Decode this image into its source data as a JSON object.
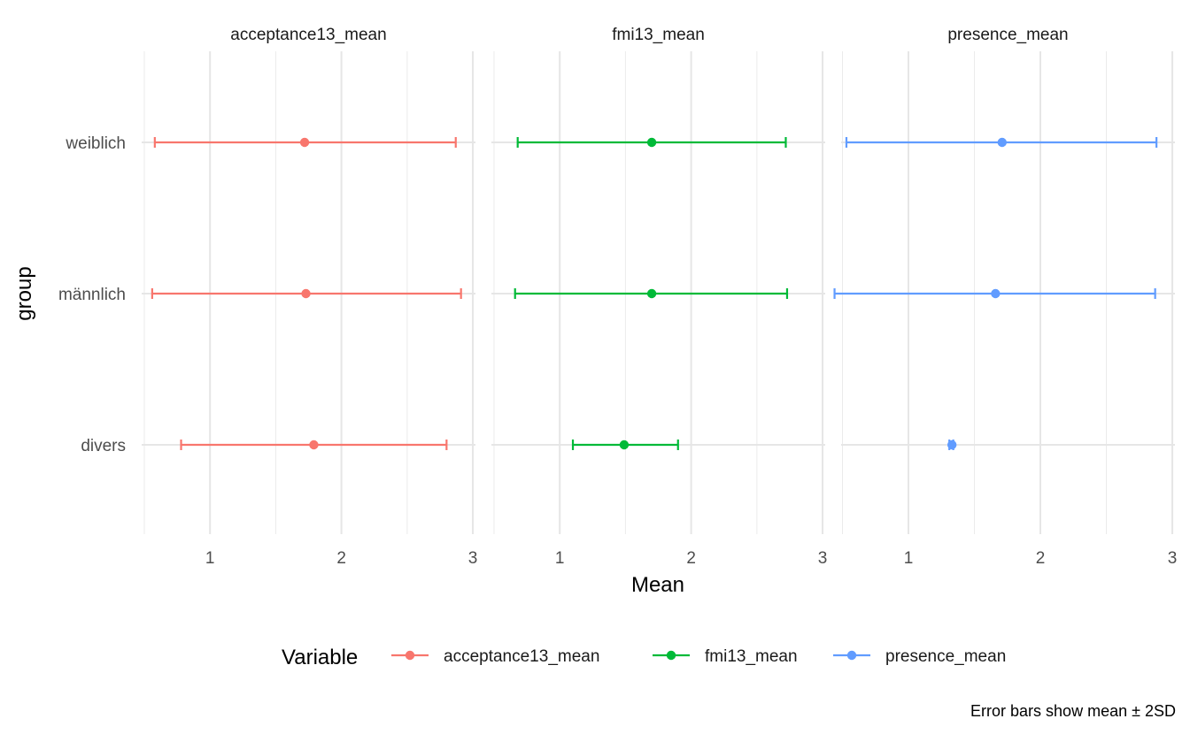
{
  "chart_data": {
    "type": "errorbar-facets",
    "ylabel": "group",
    "xlabel": "Mean",
    "groups": [
      "weiblich",
      "männlich",
      "divers"
    ],
    "x_ticks": [
      1,
      2,
      3
    ],
    "xlim": [
      0.5,
      3.0
    ],
    "grid": true,
    "legend": {
      "title": "Variable",
      "placement": "bottom",
      "entries": [
        {
          "label": "acceptance13_mean",
          "color": "#F8766D"
        },
        {
          "label": "fmi13_mean",
          "color": "#00BA38"
        },
        {
          "label": "presence_mean",
          "color": "#619CFF"
        }
      ]
    },
    "caption": "Error bars show mean ± 2SD",
    "facets": [
      {
        "title": "acceptance13_mean",
        "color": "#F8766D",
        "xlim": [
          0.48,
          3.02
        ],
        "points": [
          {
            "group": "weiblich",
            "mean": 1.72,
            "low": 0.58,
            "high": 2.87
          },
          {
            "group": "männlich",
            "mean": 1.73,
            "low": 0.56,
            "high": 2.91
          },
          {
            "group": "divers",
            "mean": 1.79,
            "low": 0.78,
            "high": 2.8
          }
        ]
      },
      {
        "title": "fmi13_mean",
        "color": "#00BA38",
        "xlim": [
          0.48,
          3.02
        ],
        "points": [
          {
            "group": "weiblich",
            "mean": 1.7,
            "low": 0.68,
            "high": 2.72
          },
          {
            "group": "männlich",
            "mean": 1.7,
            "low": 0.66,
            "high": 2.73
          },
          {
            "group": "divers",
            "mean": 1.49,
            "low": 1.1,
            "high": 1.9
          }
        ]
      },
      {
        "title": "presence_mean",
        "color": "#619CFF",
        "xlim": [
          0.49,
          3.02
        ],
        "points": [
          {
            "group": "weiblich",
            "mean": 1.71,
            "low": 0.53,
            "high": 2.88
          },
          {
            "group": "männlich",
            "mean": 1.66,
            "low": 0.44,
            "high": 2.87
          },
          {
            "group": "divers",
            "mean": 1.33,
            "low": 1.31,
            "high": 1.34
          }
        ]
      }
    ]
  }
}
